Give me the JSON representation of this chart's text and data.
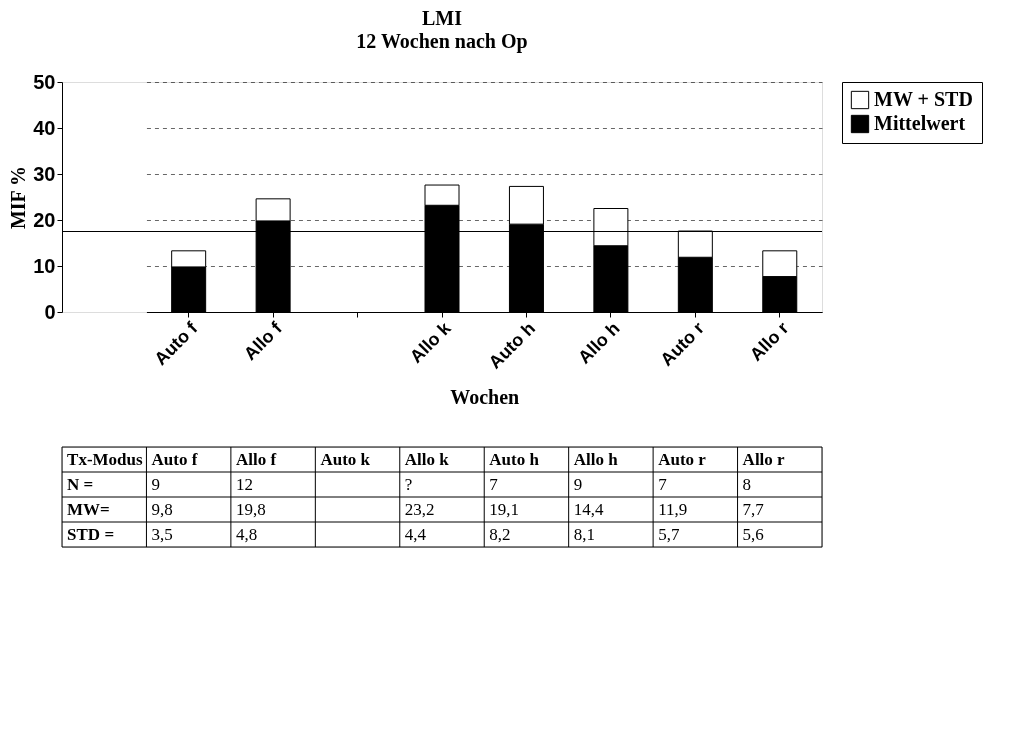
{
  "chart_data": {
    "type": "bar",
    "stacked": true,
    "title": "LMI",
    "subtitle": "12 Wochen nach Op",
    "xlabel": "Wochen",
    "ylabel": "MIF %",
    "categories": [
      "Auto f",
      "Allo f",
      null,
      "Allo k",
      "Auto h",
      "Allo h",
      "Auto r",
      "Allo r"
    ],
    "series": [
      {
        "name": "Mittelwert",
        "color": "#000000",
        "values": [
          9.8,
          19.8,
          null,
          23.2,
          19.1,
          14.4,
          11.9,
          7.7
        ],
        "value_labels": [
          "9,8",
          "19,8",
          null,
          "23,2",
          "19,1",
          "14,4",
          "11,9",
          "7,7"
        ]
      },
      {
        "name": "MW + STD",
        "color": "#ffffff",
        "values": [
          3.5,
          4.8,
          null,
          4.4,
          8.2,
          8.1,
          5.7,
          5.6
        ],
        "value_labels": [
          "3,5",
          "4,8",
          null,
          "4,4",
          "8,2",
          "8,1",
          "5,7",
          "5,6"
        ]
      }
    ],
    "ylim": [
      0,
      50
    ],
    "yticks": [
      0,
      10,
      20,
      30,
      40,
      50
    ],
    "grid": "y",
    "legend": "right",
    "ref_lines": [
      {
        "axis": "y",
        "value": 17.5
      }
    ],
    "annotations": [
      "Tx-Modus",
      "Auto k",
      "N =",
      "MW=",
      "STD =",
      "9",
      "12",
      "?",
      "7",
      "9",
      "7",
      "8"
    ]
  }
}
